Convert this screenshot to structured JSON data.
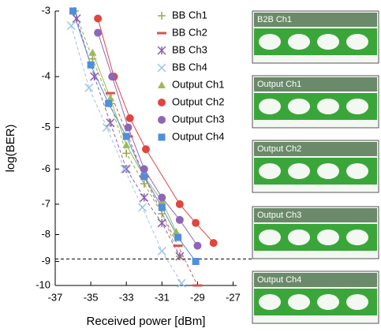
{
  "chart_data": {
    "type": "line",
    "y_label": "log(BER)",
    "x_label": "Received power [dBm]",
    "xlim": [
      -37,
      -26.8
    ],
    "xticks": [
      -37,
      -35,
      -33,
      -31,
      -29,
      -27
    ],
    "ylim": [
      -3,
      -10
    ],
    "yticks": [
      -3,
      -4,
      -5,
      -6,
      -7,
      -8,
      -9,
      -10
    ],
    "y_scale": "log(-log)",
    "threshold": -8.9,
    "legend": "upper right",
    "series": [
      {
        "name": "BB Ch1",
        "color": "#9aa84a",
        "marker": "plus",
        "line_style": "dashed",
        "x": [
          -35.9,
          -34.9,
          -33.9,
          -33,
          -32,
          -31,
          -30
        ],
        "values": [
          -3,
          -3.7,
          -4.5,
          -5.6,
          -6.4,
          -7.3,
          -8.8
        ]
      },
      {
        "name": "BB Ch2",
        "color": "#d9534f",
        "marker": "dash",
        "line_style": "dashed",
        "x": [
          -33.9,
          -32.9,
          -32,
          -30.1,
          -29
        ],
        "values": [
          -4.3,
          -5.2,
          -6.2,
          -8.4,
          -10
        ]
      },
      {
        "name": "BB Ch3",
        "color": "#8b5fad",
        "marker": "asterisk",
        "line_style": "dashed",
        "x": [
          -35.8,
          -34.8,
          -33.9,
          -33,
          -32,
          -31,
          -30
        ],
        "values": [
          -3.1,
          -4,
          -4.9,
          -6,
          -6.8,
          -7.6,
          -8.8
        ]
      },
      {
        "name": "BB Ch4",
        "color": "#9dc3e6",
        "marker": "x",
        "line_style": "dashed",
        "x": [
          -36.1,
          -35.1,
          -34.1,
          -33.1,
          -32.1,
          -31,
          -29.9
        ],
        "values": [
          -3.2,
          -4.2,
          -5,
          -6,
          -7.1,
          -8.6,
          -9.9
        ]
      },
      {
        "name": "Output Ch1",
        "color": "#9bbb59",
        "marker": "triangle",
        "line_style": "solid",
        "x": [
          -34.9,
          -33.9,
          -33,
          -32,
          -31,
          -30.2
        ],
        "values": [
          -3.6,
          -4.4,
          -5.4,
          -6.2,
          -6.9,
          -7.9
        ]
      },
      {
        "name": "Output Ch2",
        "color": "#e0463e",
        "marker": "circle",
        "line_style": "solid",
        "x": [
          -34.6,
          -33.7,
          -32.8,
          -31.9,
          -30,
          -29.1,
          -28.1
        ],
        "values": [
          -3.1,
          -4,
          -4.8,
          -5.5,
          -7,
          -7.6,
          -8.3
        ]
      },
      {
        "name": "Output Ch3",
        "color": "#8e66b8",
        "marker": "circle",
        "line_style": "solid",
        "x": [
          -34.6,
          -33.8,
          -32.9,
          -32,
          -31,
          -30,
          -29
        ],
        "values": [
          -3.3,
          -4,
          -5,
          -6,
          -6.8,
          -7.5,
          -8.4
        ]
      },
      {
        "name": "Output Ch4",
        "color": "#4f8fdc",
        "marker": "square",
        "line_style": "solid",
        "x": [
          -36,
          -35,
          -34,
          -33,
          -32,
          -31,
          -30.1,
          -29.1
        ],
        "values": [
          -3,
          -3.8,
          -4.5,
          -5.2,
          -6.2,
          -7.1,
          -8.1,
          -9
        ]
      }
    ]
  },
  "eye_diagrams": [
    "B2B Ch1",
    "Output Ch1",
    "Output Ch2",
    "Output Ch3",
    "Output Ch4"
  ]
}
